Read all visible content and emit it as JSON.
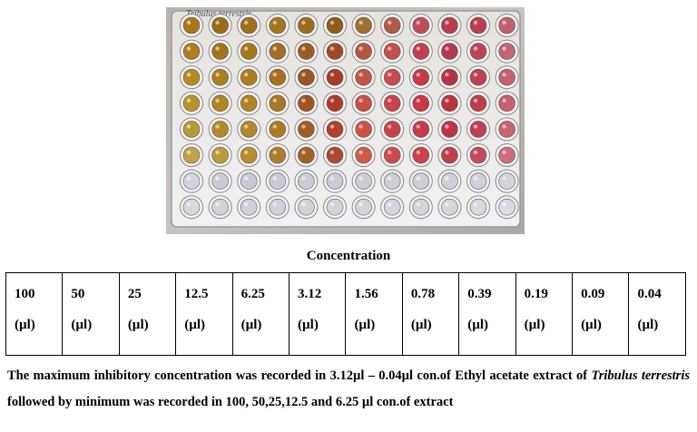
{
  "plate": {
    "label_text": "Tribulus terrestris",
    "rows": 8,
    "cols": 12,
    "well_colors": [
      [
        "#a8761a",
        "#9c6c16",
        "#a17019",
        "#a57423",
        "#9e6a1c",
        "#8f5b19",
        "#9d7030",
        "#b05a4a",
        "#c04a58",
        "#b93e4d",
        "#b8404e",
        "#c0606c"
      ],
      [
        "#b07c1e",
        "#a2741b",
        "#a7761c",
        "#a46d22",
        "#9b5d21",
        "#a04828",
        "#b7563f",
        "#c24f4b",
        "#c0404f",
        "#b4394b",
        "#ba4655",
        "#c26572"
      ],
      [
        "#b58a24",
        "#ab7f20",
        "#ad7d1f",
        "#a8711e",
        "#9a5620",
        "#a73c27",
        "#c25445",
        "#c94a4c",
        "#c83a48",
        "#b53444",
        "#bd3f50",
        "#c5616e"
      ],
      [
        "#b8932c",
        "#b08522",
        "#b08324",
        "#ac7722",
        "#a15522",
        "#ad3b2a",
        "#c94f44",
        "#c9434a",
        "#ca3645",
        "#b93342",
        "#be3c4f",
        "#c7606c"
      ],
      [
        "#b89a34",
        "#b08a28",
        "#b38826",
        "#ad7923",
        "#a35c25",
        "#b0412d",
        "#cc5246",
        "#c9434b",
        "#cb3846",
        "#bd3445",
        "#c13f52",
        "#c8636f"
      ],
      [
        "#c2a247",
        "#bd9a3a",
        "#b88d30",
        "#ad7d28",
        "#a06225",
        "#ae482e",
        "#ce5c4b",
        "#cc4b50",
        "#cc404c",
        "#c23d4c",
        "#c44a5b",
        "#cc6e7b"
      ],
      [
        "#cfd3dc",
        "#c9ccd6",
        "#c6cad4",
        "#c8cbd4",
        "#c8cbd3",
        "#c9ccd4",
        "#cacdd5",
        "#cbced6",
        "#cbced6",
        "#ccd0d8",
        "#ced1d9",
        "#d1d4dc"
      ],
      [
        "#d5d8e0",
        "#d0d3dc",
        "#cdd0d9",
        "#ced1da",
        "#cfd2da",
        "#d0d3db",
        "#d1d4dc",
        "#d2d5dd",
        "#d2d5dd",
        "#d3d6de",
        "#d5d8e0",
        "#d8dbe3"
      ]
    ]
  },
  "caption": "Concentration",
  "table": {
    "cells": [
      {
        "value": "100",
        "unit": "(µl)"
      },
      {
        "value": "50",
        "unit": "(µl)"
      },
      {
        "value": "25",
        "unit": "(µl)"
      },
      {
        "value": "12.5",
        "unit": "(µl)"
      },
      {
        "value": "6.25",
        "unit": "(µl)"
      },
      {
        "value": "3.12",
        "unit": "(µl)"
      },
      {
        "value": "1.56",
        "unit": "(µl)"
      },
      {
        "value": "0.78",
        "unit": "(µl)"
      },
      {
        "value": "0.39",
        "unit": "(µl)"
      },
      {
        "value": "0.19",
        "unit": "(µl)"
      },
      {
        "value": "0.09",
        "unit": "(µl)"
      },
      {
        "value": "0.04",
        "unit": "(µl)"
      }
    ]
  },
  "note": {
    "part1": "The maximum inhibitory concentration was recorded in 3.12µl – 0.04µl con.of Ethyl acetate extract of ",
    "species": "Tribulus terrestris",
    "part2": " followed by minimum was recorded in 100, 50,25,12.5 and 6.25 µl con.of extract"
  }
}
